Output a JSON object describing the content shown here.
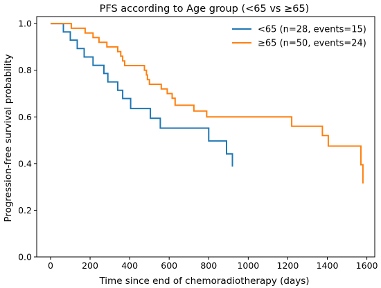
{
  "chart_data": {
    "type": "line",
    "title": "PFS according to Age group (<65 vs ≥65)",
    "xlabel": "Time since end of chemoradiotherapy (days)",
    "ylabel": "Progression-free survival probability",
    "xlim": [
      -70,
      1640
    ],
    "ylim": [
      0.0,
      1.03
    ],
    "xticks": [
      "0",
      "200",
      "400",
      "600",
      "800",
      "1000",
      "1200",
      "1400",
      "1600"
    ],
    "yticks": [
      "0.0",
      "0.2",
      "0.4",
      "0.6",
      "0.8",
      "1.0"
    ],
    "legend_position": "top-right",
    "grid": false,
    "series": [
      {
        "name": "<65 (n=28, events=15)",
        "color": "#1f77b4",
        "step": [
          [
            0,
            1.0
          ],
          [
            65,
            0.964
          ],
          [
            100,
            0.929
          ],
          [
            135,
            0.893
          ],
          [
            170,
            0.857
          ],
          [
            215,
            0.821
          ],
          [
            270,
            0.786
          ],
          [
            290,
            0.75
          ],
          [
            340,
            0.714
          ],
          [
            365,
            0.679
          ],
          [
            405,
            0.636
          ],
          [
            505,
            0.594
          ],
          [
            555,
            0.552
          ],
          [
            800,
            0.497
          ],
          [
            890,
            0.442
          ],
          [
            920,
            0.387
          ]
        ]
      },
      {
        "name": "≥65 (n=50, events=24)",
        "color": "#ff7f0e",
        "step": [
          [
            0,
            1.0
          ],
          [
            105,
            0.98
          ],
          [
            175,
            0.96
          ],
          [
            215,
            0.94
          ],
          [
            245,
            0.92
          ],
          [
            285,
            0.9
          ],
          [
            340,
            0.88
          ],
          [
            355,
            0.86
          ],
          [
            365,
            0.84
          ],
          [
            375,
            0.82
          ],
          [
            475,
            0.8
          ],
          [
            485,
            0.78
          ],
          [
            490,
            0.76
          ],
          [
            500,
            0.74
          ],
          [
            560,
            0.72
          ],
          [
            590,
            0.7
          ],
          [
            615,
            0.68
          ],
          [
            630,
            0.65
          ],
          [
            725,
            0.625
          ],
          [
            790,
            0.6
          ],
          [
            1220,
            0.56
          ],
          [
            1375,
            0.52
          ],
          [
            1405,
            0.475
          ],
          [
            1570,
            0.395
          ],
          [
            1580,
            0.315
          ]
        ]
      }
    ]
  }
}
